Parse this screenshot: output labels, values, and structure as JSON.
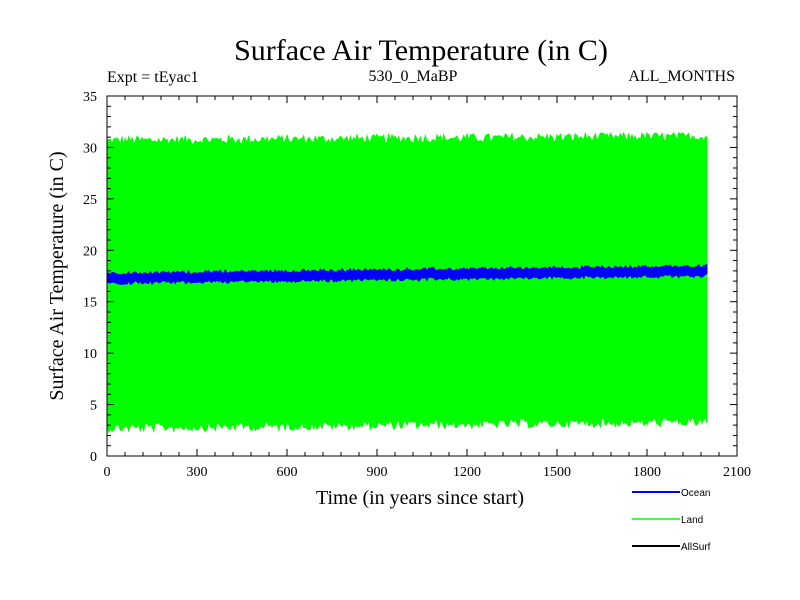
{
  "chart_data": {
    "type": "line",
    "title": "Surface Air Temperature (in C)",
    "subtitle_left": "Expt = tEyac1",
    "subtitle_center": "530_0_MaBP",
    "subtitle_right": "ALL_MONTHS",
    "xlabel": "Time (in years since start)",
    "ylabel": "Surface Air Temperature (in C)",
    "xlim": [
      0,
      2100
    ],
    "ylim": [
      0,
      35
    ],
    "xticks": [
      0,
      300,
      600,
      900,
      1200,
      1500,
      1800,
      2100
    ],
    "yticks": [
      0,
      5,
      10,
      15,
      20,
      25,
      30,
      35
    ],
    "x_data_range": [
      0,
      2000
    ],
    "series": [
      {
        "name": "Land",
        "color": "#00ff00",
        "render": "band",
        "upper_start": 30.5,
        "upper_end": 30.9,
        "lower_start": 2.9,
        "lower_end": 3.5,
        "upper_peak": 31.8,
        "lower_trough": 2.2
      },
      {
        "name": "Ocean",
        "color": "#0000ff",
        "render": "thick_line",
        "start": 17.3,
        "end": 18.0,
        "band_half_width": 0.4
      },
      {
        "name": "AllSurf",
        "color": "#000000",
        "render": "not_visible"
      }
    ],
    "legend": [
      {
        "name": "Ocean",
        "color": "#0000ff"
      },
      {
        "name": "Land",
        "color": "#00ff00"
      },
      {
        "name": "AllSurf",
        "color": "#000000"
      }
    ]
  }
}
